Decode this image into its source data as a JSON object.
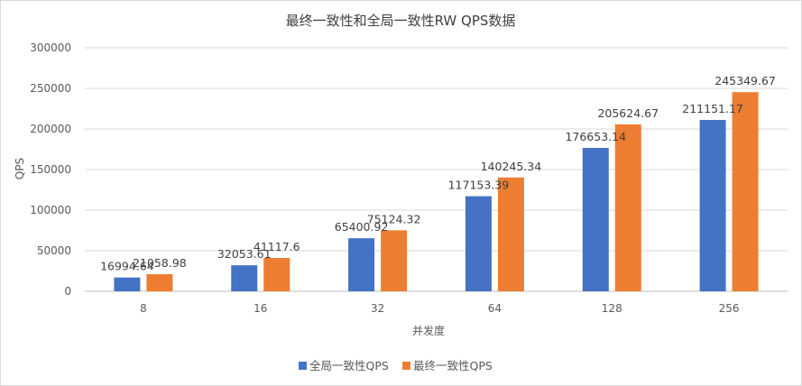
{
  "chart_data": {
    "type": "bar",
    "title": "最终一致性和全局一致性RW QPS数据",
    "xlabel": "并发度",
    "ylabel": "QPS",
    "categories": [
      "8",
      "16",
      "32",
      "64",
      "128",
      "256"
    ],
    "series": [
      {
        "name": "全局一致性QPS",
        "color": "#4472C4",
        "values": [
          16994.64,
          32053.61,
          65400.92,
          117153.39,
          176653.14,
          211151.17
        ],
        "labels": [
          "16994.64",
          "32053.61",
          "65400.92",
          "117153.39",
          "176653.14",
          "211151.17"
        ]
      },
      {
        "name": "最终一致性QPS",
        "color": "#ED7D31",
        "values": [
          21058.98,
          41117.6,
          75124.32,
          140245.34,
          205624.67,
          245349.67
        ],
        "labels": [
          "21058.98",
          "41117.6",
          "75124.32",
          "140245.34",
          "205624.67",
          "245349.67"
        ]
      }
    ],
    "ylim": [
      0,
      300000
    ],
    "yticks": [
      "0",
      "50000",
      "100000",
      "150000",
      "200000",
      "250000",
      "300000"
    ],
    "ytick_values": [
      0,
      50000,
      100000,
      150000,
      200000,
      250000,
      300000
    ],
    "grid": true,
    "legend_position": "bottom"
  }
}
